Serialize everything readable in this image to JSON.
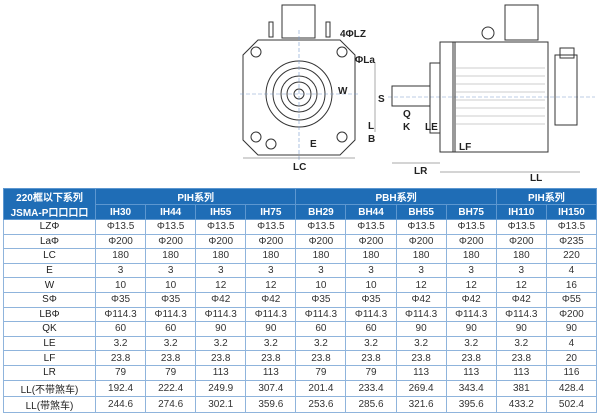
{
  "drawing": {
    "labels": {
      "lz": "4ΦLZ",
      "la": "ΦLa",
      "w": "W",
      "e": "E",
      "lc": "LC",
      "s": "S",
      "q": "Q",
      "k": "K",
      "l": "L",
      "b": "B",
      "le": "LE",
      "lf": "LF",
      "lr": "LR",
      "ll": "LL"
    }
  },
  "table": {
    "corner": [
      "220框以下系列",
      "JSMA-P口口口口"
    ],
    "groups": [
      {
        "label": "PIH系列",
        "span": 4
      },
      {
        "label": "PBH系列",
        "span": 4
      },
      {
        "label": "PIH系列",
        "span": 2
      }
    ],
    "models": [
      "IH30",
      "IH44",
      "IH55",
      "IH75",
      "BH29",
      "BH44",
      "BH55",
      "BH75",
      "IH110",
      "IH150"
    ],
    "rows": [
      {
        "label": "LZΦ",
        "values": [
          "Φ13.5",
          "Φ13.5",
          "Φ13.5",
          "Φ13.5",
          "Φ13.5",
          "Φ13.5",
          "Φ13.5",
          "Φ13.5",
          "Φ13.5",
          "Φ13.5"
        ]
      },
      {
        "label": "LaΦ",
        "values": [
          "Φ200",
          "Φ200",
          "Φ200",
          "Φ200",
          "Φ200",
          "Φ200",
          "Φ200",
          "Φ200",
          "Φ200",
          "Φ235"
        ]
      },
      {
        "label": "LC",
        "values": [
          "180",
          "180",
          "180",
          "180",
          "180",
          "180",
          "180",
          "180",
          "180",
          "220"
        ]
      },
      {
        "label": "E",
        "values": [
          "3",
          "3",
          "3",
          "3",
          "3",
          "3",
          "3",
          "3",
          "3",
          "4"
        ]
      },
      {
        "label": "W",
        "values": [
          "10",
          "10",
          "12",
          "12",
          "10",
          "10",
          "12",
          "12",
          "12",
          "16"
        ]
      },
      {
        "label": "SΦ",
        "values": [
          "Φ35",
          "Φ35",
          "Φ42",
          "Φ42",
          "Φ35",
          "Φ35",
          "Φ42",
          "Φ42",
          "Φ42",
          "Φ55"
        ]
      },
      {
        "label": "LBΦ",
        "values": [
          "Φ114.3",
          "Φ114.3",
          "Φ114.3",
          "Φ114.3",
          "Φ114.3",
          "Φ114.3",
          "Φ114.3",
          "Φ114.3",
          "Φ114.3",
          "Φ200"
        ]
      },
      {
        "label": "QK",
        "values": [
          "60",
          "60",
          "90",
          "90",
          "60",
          "60",
          "90",
          "90",
          "90",
          "90"
        ]
      },
      {
        "label": "LE",
        "values": [
          "3.2",
          "3.2",
          "3.2",
          "3.2",
          "3.2",
          "3.2",
          "3.2",
          "3.2",
          "3.2",
          "4"
        ]
      },
      {
        "label": "LF",
        "values": [
          "23.8",
          "23.8",
          "23.8",
          "23.8",
          "23.8",
          "23.8",
          "23.8",
          "23.8",
          "23.8",
          "20"
        ]
      },
      {
        "label": "LR",
        "values": [
          "79",
          "79",
          "113",
          "113",
          "79",
          "79",
          "113",
          "113",
          "113",
          "116"
        ]
      },
      {
        "label": "LL(不带煞车)",
        "values": [
          "192.4",
          "222.4",
          "249.9",
          "307.4",
          "201.4",
          "233.4",
          "269.4",
          "343.4",
          "381",
          "428.4"
        ]
      },
      {
        "label": "LL(带煞车)",
        "values": [
          "244.6",
          "274.6",
          "302.1",
          "359.6",
          "253.6",
          "285.6",
          "321.6",
          "395.6",
          "433.2",
          "502.4"
        ]
      }
    ]
  },
  "colors": {
    "header": "#1f6db6",
    "grid": "#8fb4dc"
  }
}
